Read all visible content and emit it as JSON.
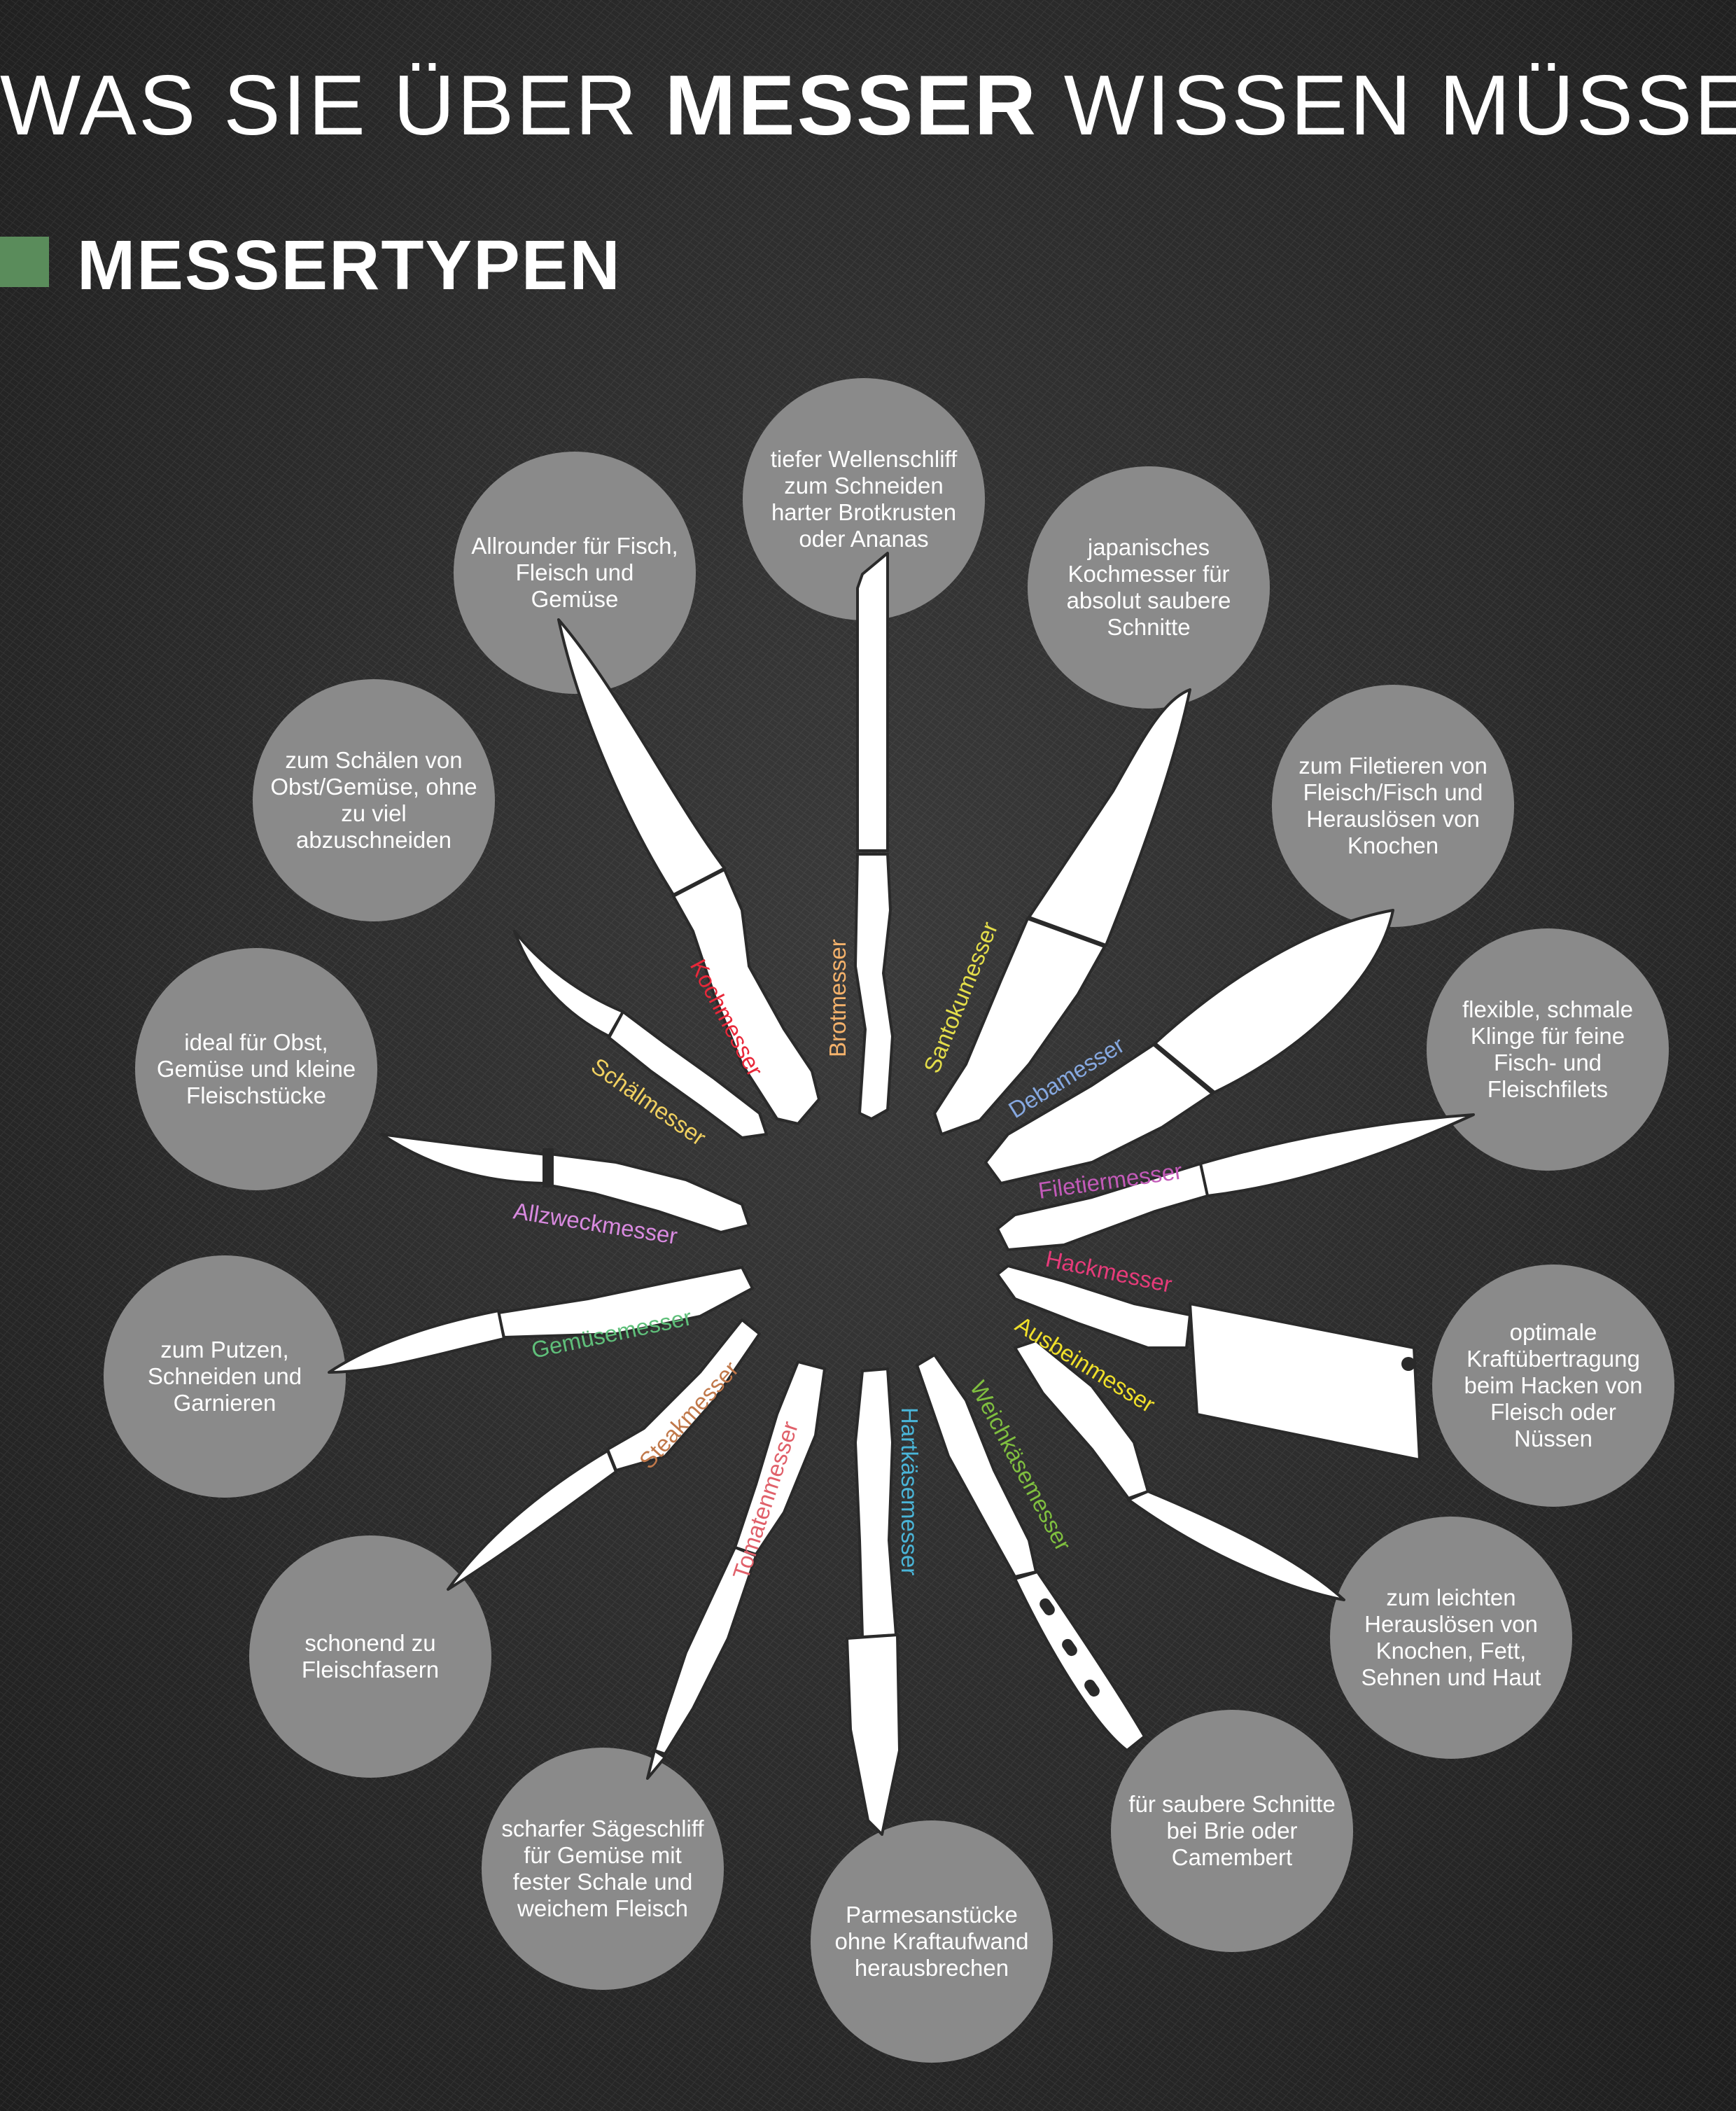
{
  "header": {
    "title_pre": "WAS SIE ÜBER ",
    "title_bold": "MESSER",
    "title_post": " WISSEN MÜSSEN",
    "section_title": "MESSERTYPEN",
    "section_marker_color": "#5a8c5b"
  },
  "knives": [
    {
      "key": "brot",
      "name": "Brotmesser",
      "color": "#f5b26b",
      "desc": "tiefer Wellenschliff zum Schneiden harter Brotkrusten oder Ananas"
    },
    {
      "key": "santoku",
      "name": "Santokumesser",
      "color": "#e4de4a",
      "desc": "japanisches Kochmesser für absolut saubere Schnitte"
    },
    {
      "key": "deba",
      "name": "Debamesser",
      "color": "#86a8e0",
      "desc": "zum Filetieren von Fleisch/Fisch und Herauslösen von Knochen"
    },
    {
      "key": "filetier",
      "name": "Filetiermesser",
      "color": "#c25ab8",
      "desc": "flexible, schmale Klinge für feine Fisch- und Fleischfilets"
    },
    {
      "key": "hack",
      "name": "Hackmesser",
      "color": "#e63b7a",
      "desc": "optimale Kraftübertragung beim Hacken von Fleisch oder Nüssen"
    },
    {
      "key": "ausbein",
      "name": "Ausbeinmesser",
      "color": "#f0e02a",
      "desc": "zum leichten Herauslösen von Knochen, Fett, Sehnen und Haut"
    },
    {
      "key": "weichkaese",
      "name": "Weichkäsemesser",
      "color": "#7fbf3f",
      "desc": "für saubere Schnitte bei Brie oder Camembert"
    },
    {
      "key": "hartkaese",
      "name": "Hartkäsemesser",
      "color": "#4ab5d8",
      "desc": "Parmesanstücke ohne Kraftaufwand herausbrechen"
    },
    {
      "key": "tomate",
      "name": "Tomatenmesser",
      "color": "#e0606a",
      "desc": "scharfer Sägeschliff für Gemüse mit fester Schale und weichem Fleisch"
    },
    {
      "key": "steak",
      "name": "Steakmesser",
      "color": "#c0784a",
      "desc": "schonend zu Fleischfasern"
    },
    {
      "key": "gemuese",
      "name": "Gemüsemesser",
      "color": "#5fbf7a",
      "desc": "zum Putzen, Schneiden und Garnieren"
    },
    {
      "key": "allzweck",
      "name": "Allzweckmesser",
      "color": "#d98ae0",
      "desc": "ideal für Obst, Gemüse und kleine Fleischstücke"
    },
    {
      "key": "schael",
      "name": "Schälmesser",
      "color": "#f0d060",
      "desc": "zum Schälen von Obst/Gemüse, ohne zu viel abzuschneiden"
    },
    {
      "key": "koch",
      "name": "Kochmesser",
      "color": "#e8283a",
      "desc": "Allrounder für Fisch, Fleisch und Gemüse"
    }
  ]
}
